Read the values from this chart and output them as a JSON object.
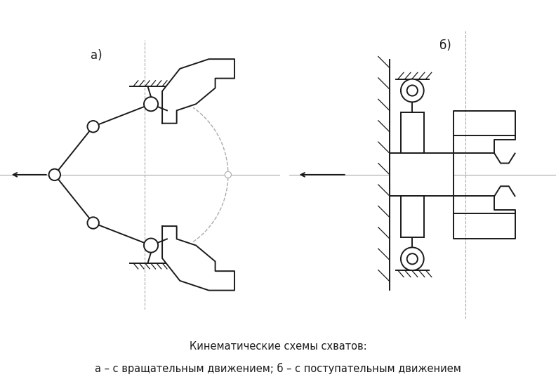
{
  "caption_line1": "Кинематические схемы схватов:",
  "caption_line2": "а – с вращательным движением; б – с поступательным движением",
  "label_a": "а)",
  "label_b": "б)",
  "bg_color": "#ffffff",
  "line_color": "#1a1a1a",
  "dash_color": "#aaaaaa",
  "fontsize_caption": 10.5,
  "fontsize_label": 12
}
